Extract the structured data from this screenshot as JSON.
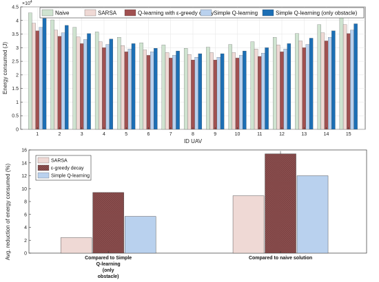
{
  "chart_data": [
    {
      "type": "bar",
      "xlabel": "ID UAV",
      "ylabel": "Energy consumed (J)",
      "exponent_label": "×10",
      "exponent_power": "4",
      "ylim": [
        0,
        4.5
      ],
      "yticks": [
        "0",
        "0.5",
        "1",
        "1.5",
        "2",
        "2.5",
        "3",
        "3.5",
        "4",
        "4.5"
      ],
      "categories": [
        "1",
        "2",
        "3",
        "4",
        "5",
        "6",
        "7",
        "8",
        "9",
        "10",
        "11",
        "12",
        "13",
        "14",
        "15"
      ],
      "grid": true,
      "legend_position": "top",
      "series": [
        {
          "name": "Naive",
          "color": "#cfe3d0",
          "values": [
            4.28,
            4.02,
            3.75,
            3.58,
            3.38,
            3.18,
            3.1,
            2.98,
            3.02,
            3.12,
            3.22,
            3.38,
            3.52,
            3.85,
            4.1
          ]
        },
        {
          "name": "SARSA",
          "color": "#efd9d5",
          "values": [
            3.9,
            3.65,
            3.4,
            3.22,
            3.08,
            2.92,
            2.82,
            2.75,
            2.82,
            2.82,
            2.95,
            3.1,
            3.25,
            3.55,
            3.85
          ]
        },
        {
          "name": "Q-learning with ε-greedy decay",
          "color": "#a05050",
          "values": [
            3.62,
            3.42,
            3.15,
            3.0,
            2.85,
            2.72,
            2.62,
            2.55,
            2.55,
            2.62,
            2.68,
            2.85,
            3.0,
            3.25,
            3.52
          ]
        },
        {
          "name": "Simple Q-learning",
          "color": "#b9d1ee",
          "values": [
            3.75,
            3.55,
            3.3,
            3.12,
            2.95,
            2.85,
            2.72,
            2.65,
            2.65,
            2.72,
            2.8,
            2.95,
            3.12,
            3.38,
            3.65
          ]
        },
        {
          "name": "Simple Q-learning (only obstacle)",
          "color": "#1c6fb5",
          "values": [
            4.08,
            3.82,
            3.52,
            3.32,
            3.15,
            2.98,
            2.88,
            2.78,
            2.78,
            2.88,
            3.0,
            3.15,
            3.35,
            3.62,
            3.88
          ]
        }
      ]
    },
    {
      "type": "bar",
      "xlabel": "",
      "ylabel": "Avg. reduction of energy consumed (%)",
      "ylim": [
        0,
        16
      ],
      "yticks": [
        "0",
        "2",
        "4",
        "6",
        "8",
        "10",
        "12",
        "14",
        "16"
      ],
      "categories": [
        "Compared to Simple Q-learning (only obstacle)",
        "Compared to naive solution"
      ],
      "category_lines": [
        [
          "Compared to Simple",
          "Q-learning",
          "(only",
          "obstacle)"
        ],
        [
          "Compared to naive solution"
        ]
      ],
      "grid": false,
      "legend_position": "top-left",
      "series": [
        {
          "name": "SARSA",
          "color": "#efd9d5",
          "values": [
            2.4,
            8.9
          ]
        },
        {
          "name": "ε-greedy decay",
          "color": "#8c4f4f",
          "hatch": true,
          "values": [
            9.4,
            15.4
          ]
        },
        {
          "name": "Simple Q-learning",
          "color": "#b9d1ee",
          "values": [
            5.7,
            12.0
          ]
        }
      ]
    }
  ]
}
